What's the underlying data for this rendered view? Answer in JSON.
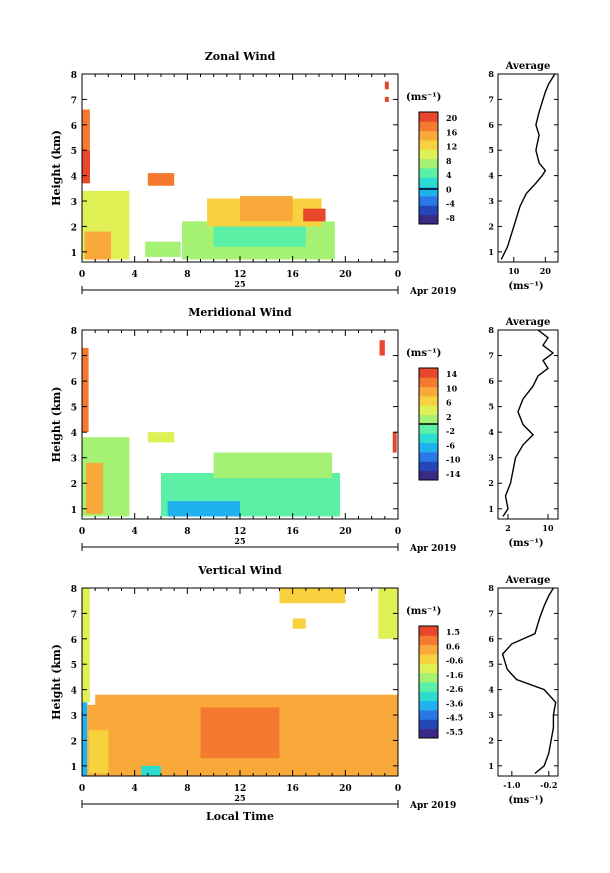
{
  "colormap": [
    "#3a2a85",
    "#2447b8",
    "#2a78e6",
    "#1fb2ee",
    "#2cdccf",
    "#5cefa6",
    "#a5f174",
    "#dff055",
    "#f8d23e",
    "#f8a93a",
    "#f57a30",
    "#e8472c"
  ],
  "chart_data": [
    {
      "type": "heatmap",
      "title": "Zonal Wind",
      "ylabel": "Height (km)",
      "xlabel": "",
      "x_ticks": [
        "0",
        "4",
        "8",
        "12",
        "16",
        "20",
        "0"
      ],
      "y_ticks": [
        "1",
        "2",
        "3",
        "4",
        "5",
        "6",
        "7",
        "8"
      ],
      "day_label": "25",
      "date_label": "Apr 2019",
      "xlim_hours": [
        0,
        24
      ],
      "ylim_km": [
        0.6,
        8.0
      ],
      "colorbar": {
        "unit": "(ms⁻¹)",
        "tick_labels": [
          "20",
          "16",
          "12",
          "8",
          "4",
          "0",
          "-4",
          "-8"
        ],
        "range": [
          -10,
          22
        ],
        "zero_line": 0
      },
      "patches": [
        {
          "x0": 0.0,
          "x1": 0.6,
          "y0": 3.7,
          "y1": 6.6,
          "value": 17
        },
        {
          "x0": 0.0,
          "x1": 0.6,
          "y0": 3.7,
          "y1": 5.0,
          "value": 21
        },
        {
          "x0": 0.0,
          "x1": 3.6,
          "y0": 0.7,
          "y1": 3.4,
          "value": 11
        },
        {
          "x0": 0.2,
          "x1": 2.2,
          "y0": 0.7,
          "y1": 1.8,
          "value": 14
        },
        {
          "x0": 4.8,
          "x1": 7.5,
          "y0": 0.8,
          "y1": 1.4,
          "value": 7
        },
        {
          "x0": 7.6,
          "x1": 19.2,
          "y0": 0.7,
          "y1": 2.2,
          "value": 6
        },
        {
          "x0": 10.0,
          "x1": 17.0,
          "y0": 1.2,
          "y1": 2.2,
          "value": 4
        },
        {
          "x0": 9.5,
          "x1": 18.2,
          "y0": 2.0,
          "y1": 3.1,
          "value": 12
        },
        {
          "x0": 12.0,
          "x1": 16.0,
          "y0": 2.2,
          "y1": 3.2,
          "value": 16
        },
        {
          "x0": 16.8,
          "x1": 18.5,
          "y0": 2.2,
          "y1": 2.7,
          "value": 20
        },
        {
          "x0": 5.0,
          "x1": 7.0,
          "y0": 3.6,
          "y1": 4.1,
          "value": 18
        },
        {
          "x0": 23.0,
          "x1": 23.3,
          "y0": 7.4,
          "y1": 7.7,
          "value": 21
        },
        {
          "x0": 23.0,
          "x1": 23.3,
          "y0": 6.9,
          "y1": 7.1,
          "value": 21
        }
      ],
      "average": {
        "xlim": [
          5,
          24
        ],
        "x_ticks": [
          "10",
          "20"
        ],
        "unit": "(ms⁻¹)",
        "points": [
          [
            6,
            0.7
          ],
          [
            8,
            1.2
          ],
          [
            10,
            2.0
          ],
          [
            12,
            2.8
          ],
          [
            14,
            3.3
          ],
          [
            17,
            3.7
          ],
          [
            19,
            4.0
          ],
          [
            20,
            4.2
          ],
          [
            18,
            4.5
          ],
          [
            17,
            5.0
          ],
          [
            18,
            5.6
          ],
          [
            17,
            6.0
          ],
          [
            18,
            6.5
          ],
          [
            19,
            6.9
          ],
          [
            20,
            7.3
          ],
          [
            21,
            7.6
          ],
          [
            22,
            7.8
          ],
          [
            23,
            8.0
          ]
        ]
      }
    },
    {
      "type": "heatmap",
      "title": "Meridional Wind",
      "ylabel": "Height (km)",
      "xlabel": "",
      "x_ticks": [
        "0",
        "4",
        "8",
        "12",
        "16",
        "20",
        "0"
      ],
      "y_ticks": [
        "1",
        "2",
        "3",
        "4",
        "5",
        "6",
        "7",
        "8"
      ],
      "day_label": "25",
      "date_label": "Apr 2019",
      "xlim_hours": [
        0,
        24
      ],
      "ylim_km": [
        0.6,
        8.0
      ],
      "colorbar": {
        "unit": "(ms⁻¹)",
        "tick_labels": [
          "14",
          "10",
          "6",
          "2",
          "-2",
          "-6",
          "-10",
          "-14"
        ],
        "range": [
          -16,
          16
        ],
        "zero_line": 0
      },
      "patches": [
        {
          "x0": 0.0,
          "x1": 0.5,
          "y0": 4.0,
          "y1": 7.3,
          "value": 11
        },
        {
          "x0": 0.0,
          "x1": 3.6,
          "y0": 0.7,
          "y1": 3.8,
          "value": 1
        },
        {
          "x0": 0.3,
          "x1": 1.6,
          "y0": 0.8,
          "y1": 2.8,
          "value": 8
        },
        {
          "x0": 5.0,
          "x1": 7.0,
          "y0": 3.6,
          "y1": 4.0,
          "value": 4
        },
        {
          "x0": 6.0,
          "x1": 19.6,
          "y0": 0.7,
          "y1": 2.4,
          "value": -2
        },
        {
          "x0": 6.5,
          "x1": 12.0,
          "y0": 0.7,
          "y1": 1.3,
          "value": -6
        },
        {
          "x0": 10.0,
          "x1": 19.0,
          "y0": 2.2,
          "y1": 3.2,
          "value": 0
        },
        {
          "x0": 23.6,
          "x1": 23.9,
          "y0": 3.2,
          "y1": 4.0,
          "value": 14
        },
        {
          "x0": 22.6,
          "x1": 23.0,
          "y0": 7.0,
          "y1": 7.6,
          "value": 14
        }
      ],
      "average": {
        "xlim": [
          0,
          12
        ],
        "x_ticks": [
          "2",
          "10"
        ],
        "unit": "(ms⁻¹)",
        "points": [
          [
            1,
            0.7
          ],
          [
            2,
            1.0
          ],
          [
            1.5,
            1.5
          ],
          [
            2.5,
            2.0
          ],
          [
            3,
            2.5
          ],
          [
            3.5,
            3.0
          ],
          [
            5,
            3.5
          ],
          [
            7,
            3.9
          ],
          [
            5,
            4.3
          ],
          [
            4,
            4.8
          ],
          [
            5,
            5.3
          ],
          [
            7,
            5.8
          ],
          [
            8,
            6.2
          ],
          [
            10,
            6.5
          ],
          [
            9,
            6.8
          ],
          [
            11,
            7.1
          ],
          [
            9,
            7.4
          ],
          [
            10,
            7.7
          ],
          [
            8,
            8.0
          ]
        ]
      }
    },
    {
      "type": "heatmap",
      "title": "Vertical Wind",
      "ylabel": "Height (km)",
      "xlabel": "Local Time",
      "x_ticks": [
        "0",
        "4",
        "8",
        "12",
        "16",
        "20",
        "0"
      ],
      "y_ticks": [
        "1",
        "2",
        "3",
        "4",
        "5",
        "6",
        "7",
        "8"
      ],
      "day_label": "25",
      "date_label": "Apr 2019",
      "xlim_hours": [
        0,
        24
      ],
      "ylim_km": [
        0.6,
        8.0
      ],
      "colorbar": {
        "unit": "(ms⁻¹)",
        "tick_labels": [
          "1.5",
          "0.6",
          "-0.6",
          "-1.6",
          "-2.6",
          "-3.6",
          "-4.5",
          "-5.5"
        ],
        "range": [
          -6.0,
          2.0
        ]
      },
      "patches": [
        {
          "x0": 0.0,
          "x1": 0.6,
          "y0": 3.5,
          "y1": 8.0,
          "value": -1.2
        },
        {
          "x0": 0.0,
          "x1": 0.4,
          "y0": 0.6,
          "y1": 3.5,
          "value": -4.0
        },
        {
          "x0": 0.4,
          "x1": 24.0,
          "y0": 0.6,
          "y1": 3.4,
          "value": 0.4
        },
        {
          "x0": 0.5,
          "x1": 2.0,
          "y0": 0.7,
          "y1": 2.4,
          "value": -0.6
        },
        {
          "x0": 4.5,
          "x1": 6.0,
          "y0": 0.6,
          "y1": 1.0,
          "value": -3.0
        },
        {
          "x0": 9.0,
          "x1": 15.0,
          "y0": 1.3,
          "y1": 3.3,
          "value": 0.9
        },
        {
          "x0": 1.0,
          "x1": 24.0,
          "y0": 3.3,
          "y1": 3.8,
          "value": 0.5
        },
        {
          "x0": 15.0,
          "x1": 20.0,
          "y0": 7.4,
          "y1": 8.0,
          "value": -0.3
        },
        {
          "x0": 22.5,
          "x1": 24.0,
          "y0": 6.0,
          "y1": 8.0,
          "value": -0.8
        },
        {
          "x0": 16.0,
          "x1": 17.0,
          "y0": 6.4,
          "y1": 6.8,
          "value": -0.3
        }
      ],
      "average": {
        "xlim": [
          -1.3,
          0.0
        ],
        "x_ticks": [
          "-1.0",
          "-0.2"
        ],
        "unit": "(ms⁻¹)",
        "points": [
          [
            -0.5,
            0.7
          ],
          [
            -0.3,
            1.0
          ],
          [
            -0.2,
            1.5
          ],
          [
            -0.15,
            2.0
          ],
          [
            -0.1,
            2.5
          ],
          [
            -0.1,
            3.0
          ],
          [
            -0.05,
            3.5
          ],
          [
            -0.3,
            4.0
          ],
          [
            -0.9,
            4.4
          ],
          [
            -1.1,
            4.8
          ],
          [
            -1.2,
            5.4
          ],
          [
            -1.0,
            5.8
          ],
          [
            -0.5,
            6.2
          ],
          [
            -0.4,
            6.8
          ],
          [
            -0.3,
            7.3
          ],
          [
            -0.2,
            7.7
          ],
          [
            -0.1,
            8.0
          ]
        ]
      }
    }
  ],
  "average_title": "Average"
}
